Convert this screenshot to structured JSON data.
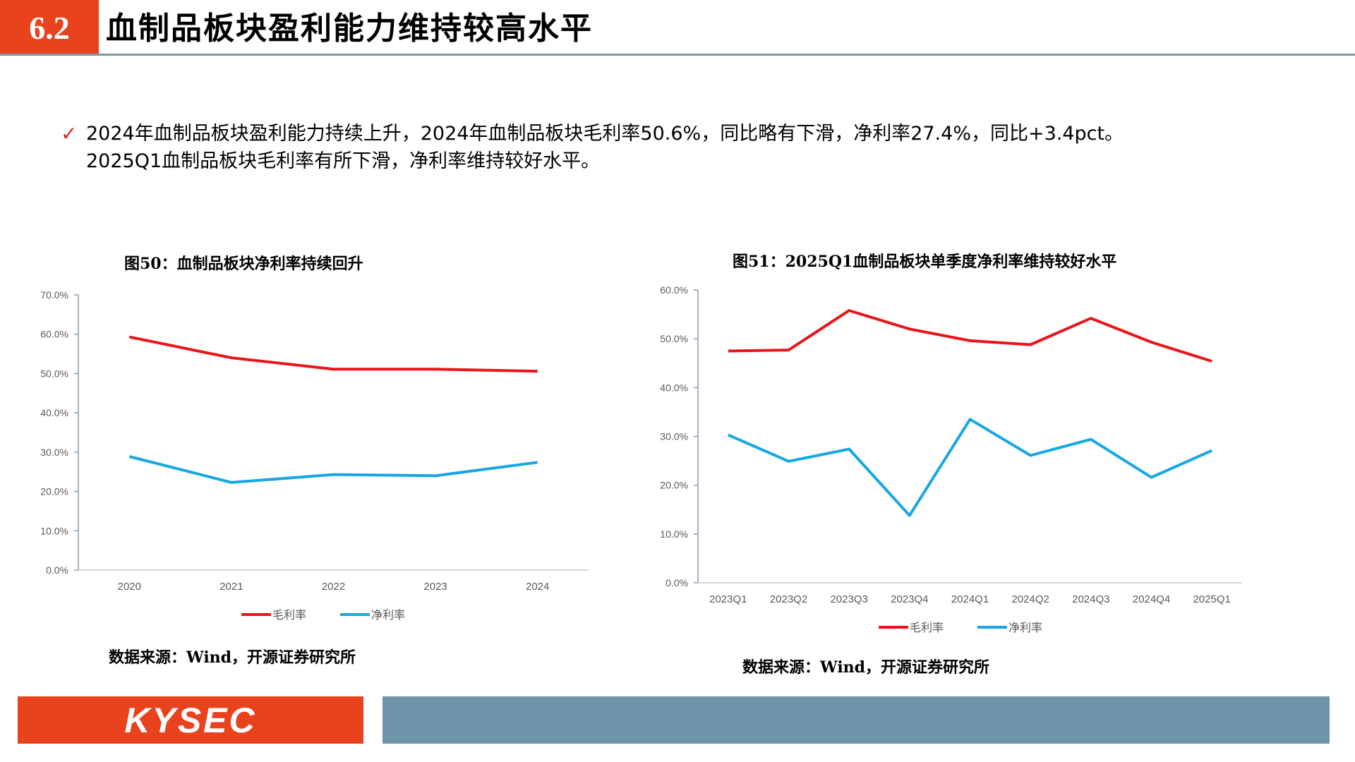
{
  "header": {
    "section_number": "6.2",
    "title": "血制品板块盈利能力维持较高水平"
  },
  "bullet": {
    "text": "2024年血制品板块盈利能力持续上升，2024年血制品板块毛利率50.6%，同比略有下滑，净利率27.4%，同比+3.4pct。\n2025Q1血制品板块毛利率有所下滑，净利率维持较好水平。"
  },
  "charts": {
    "left_title": "图50：血制品板块净利率持续回升",
    "right_title": "图51：2025Q1血制品板块单季度净利率维持较好水平",
    "left_source": "数据来源：Wind，开源证券研究所",
    "right_source": "数据来源：Wind，开源证券研究所"
  },
  "footer": {
    "logo_text": "KYSEC"
  },
  "colors": {
    "gross": "#e8161b",
    "net": "#17a7e4",
    "accent": "#e8431d",
    "bar": "#6f93a8"
  },
  "chart_data": [
    {
      "type": "line",
      "title": "图50：血制品板块净利率持续回升",
      "categories": [
        "2020",
        "2021",
        "2022",
        "2023",
        "2024"
      ],
      "series": [
        {
          "name": "毛利率",
          "values": [
            59.3,
            54.0,
            51.1,
            51.1,
            50.6
          ]
        },
        {
          "name": "净利率",
          "values": [
            28.9,
            22.3,
            24.3,
            24.0,
            27.4
          ]
        }
      ],
      "ylim": [
        0,
        70
      ],
      "yticks": [
        "0.0%",
        "10.0%",
        "20.0%",
        "30.0%",
        "40.0%",
        "50.0%",
        "60.0%",
        "70.0%"
      ],
      "legend": "bottom",
      "grid": false
    },
    {
      "type": "line",
      "title": "图51：2025Q1血制品板块单季度净利率维持较好水平",
      "categories": [
        "2023Q1",
        "2023Q2",
        "2023Q3",
        "2023Q4",
        "2024Q1",
        "2024Q2",
        "2024Q3",
        "2024Q4",
        "2025Q1"
      ],
      "series": [
        {
          "name": "毛利率",
          "values": [
            47.5,
            47.7,
            55.8,
            52.0,
            49.6,
            48.8,
            54.2,
            49.3,
            45.4
          ]
        },
        {
          "name": "净利率",
          "values": [
            30.3,
            24.9,
            27.4,
            13.8,
            33.5,
            26.1,
            29.4,
            21.6,
            27.1
          ]
        }
      ],
      "ylim": [
        0,
        60
      ],
      "yticks": [
        "0.0%",
        "10.0%",
        "20.0%",
        "30.0%",
        "40.0%",
        "50.0%",
        "60.0%"
      ],
      "legend": "bottom",
      "grid": false
    }
  ]
}
